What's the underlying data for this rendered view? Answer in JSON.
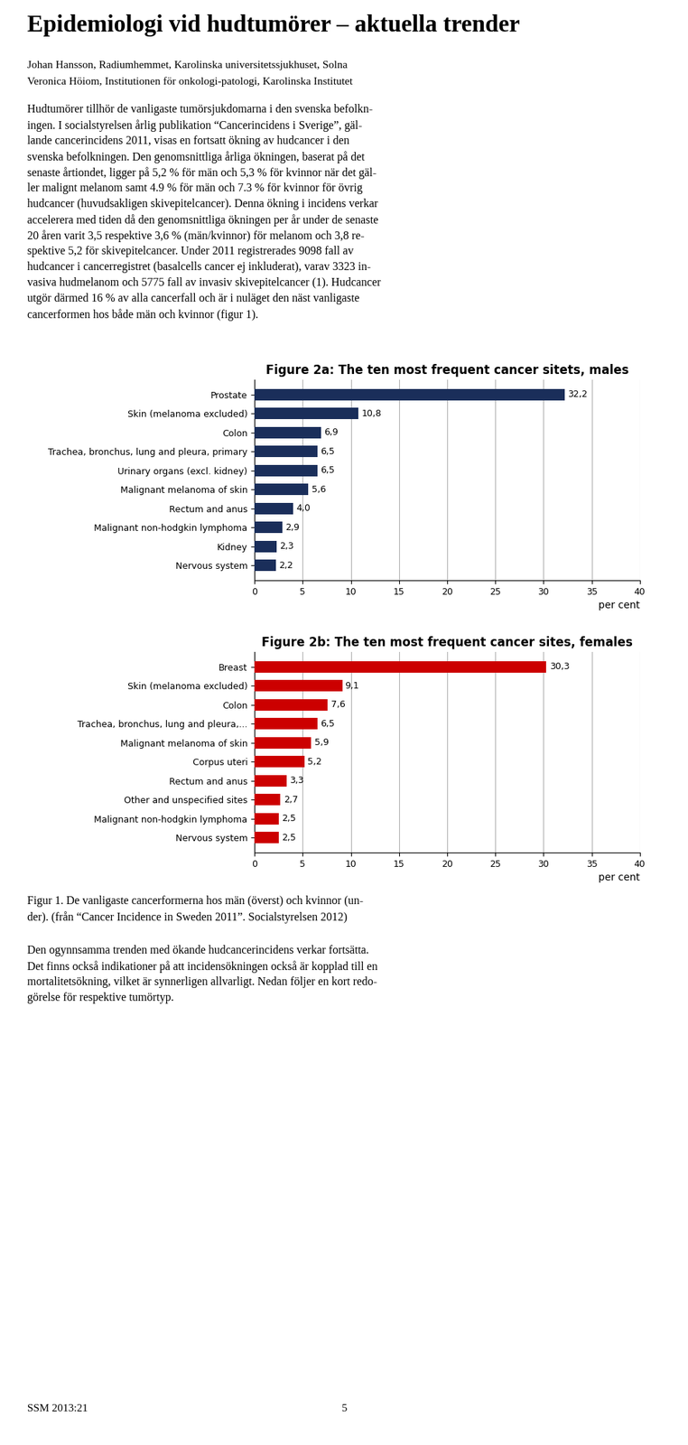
{
  "title": "Epidemiologi vid hudtumörer – aktuella trender",
  "subtitle": [
    "Johan Hansson, Radiumhemmet, Karolinska universitetssjukhuset, Solna",
    "Veronica Höiom, Institutionen för onkologi-patologi, Karolinska Institutet"
  ],
  "annotations": [
    [
      "Hudtumörer tillhör de vanligaste tumörsjukdomarna i den svenska befolkn-",
      "ingen. I socialstyrelsen årlig publikation “Cancerincidens i Sverige”, gäl-",
      "lande cancerincidens 2011, visas en fortsatt ökning av hudcancer i den",
      "svenska befolkningen. Den genomsnittliga årliga ökningen, baserat på det",
      "senaste årtiondet, ligger på 5,2 % för män och 5,3 % för kvinnor när det gäl-",
      "ler malignt melanom samt 4.9 % för män och 7.3 % för kvinnor för övrig",
      "hudcancer (huvudsakligen skivepitelcancer). Denna ökning i incidens verkar",
      "accelerera med tiden då den genomsnittliga ökningen per år under de senaste",
      "20 åren varit 3,5 respektive 3,6 % (män/kvinnor) för melanom och 3,8 re-",
      "spektive 5,2 för skivepitelcancer. Under 2011 registrerades 9098 fall av",
      "hudcancer i cancerregistret (basalcells cancer ej inkluderat), varav 3323 in-",
      "vasiva hudmelanom och 5775 fall av invasiv skivepitelcancer (1). Hudcancer",
      "utgör därmed 16 % av alla cancerfall och är i nuläget den näst vanligaste",
      "cancerformen hos både män och kvinnor (figur 1)."
    ],
    [
      "Figur 1. De vanligaste cancerformerna hos män (överst) och kvinnor (un-",
      "der). (från “Cancer Incidence in Sweden 2011”. Socialstyrelsen 2012)"
    ],
    [
      "Den ogynnsamma trenden med ökande hudcancerincidens verkar fortsätta.",
      "Det finns också indikationer på att incidensökningen också är kopplad till en",
      "mortalitetsökning, vilket är synnerligen allvarligt. Nedan följer en kort redo-",
      "görelse för respektive tumörtyp."
    ],
    [
      "SSM 2013:21",
      "5"
    ]
  ],
  "chart_data": [
    {
      "type": "bar",
      "orientation": "horizontal",
      "title": "Figure 2a: The ten most frequent cancer sitets, males",
      "categories": [
        "Prostate",
        "Skin (melanoma excluded)",
        "Colon",
        "Trachea, bronchus, lung and pleura, primary",
        "Urinary organs (excl. kidney)",
        "Malignant melanoma of skin",
        "Rectum and anus",
        "Malignant non-hodgkin lymphoma",
        "Kidney",
        "Nervous system"
      ],
      "values": [
        32.2,
        10.8,
        6.9,
        6.5,
        6.5,
        5.6,
        4.0,
        2.9,
        2.3,
        2.2
      ],
      "value_labels": [
        "32,2",
        "10,8",
        "6,9",
        "6,5",
        "6,5",
        "5,6",
        "4,0",
        "2,9",
        "2,3",
        "2,2"
      ],
      "data_labels": true,
      "color": "#1a2e5a",
      "xlabel": "per cent",
      "xlim": [
        0,
        40
      ],
      "xticks": [
        0,
        5,
        10,
        15,
        20,
        25,
        30,
        35,
        40
      ],
      "grid": true
    },
    {
      "type": "bar",
      "orientation": "horizontal",
      "title": "Figure 2b: The ten most frequent cancer sites, females",
      "categories": [
        "Breast",
        "Skin (melanoma excluded)",
        "Colon",
        "Trachea, bronchus, lung and pleura,...",
        "Malignant melanoma of skin",
        "Corpus uteri",
        "Rectum and anus",
        "Other and unspecified sites",
        "Malignant non-hodgkin lymphoma",
        "Nervous system"
      ],
      "values": [
        30.3,
        9.1,
        7.6,
        6.5,
        5.9,
        5.2,
        3.3,
        2.7,
        2.5,
        2.5
      ],
      "value_labels": [
        "30,3",
        "9,1",
        "7,6",
        "6,5",
        "5,9",
        "5,2",
        "3,3",
        "2,7",
        "2,5",
        "2,5"
      ],
      "data_labels": true,
      "color": "#cc0000",
      "xlabel": "per cent",
      "xlim": [
        0,
        40
      ],
      "xticks": [
        0,
        5,
        10,
        15,
        20,
        25,
        30,
        35,
        40
      ],
      "grid": true
    }
  ]
}
